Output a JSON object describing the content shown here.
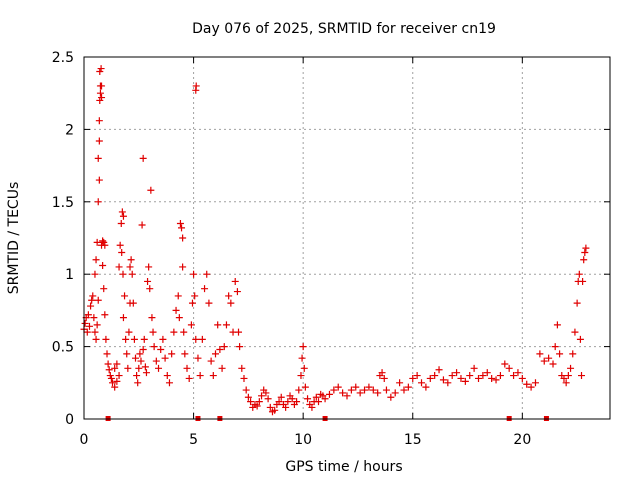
{
  "chart_data": {
    "type": "scatter",
    "title": "Day 076 of 2025, SRMTID for receiver cn19",
    "xlabel": "GPS time / hours",
    "ylabel": "SRMTID / TECUs",
    "xlim": [
      0,
      24
    ],
    "ylim": [
      0,
      2.5
    ],
    "x_ticks": [
      0,
      5,
      10,
      15,
      20
    ],
    "x_tick_labels": [
      "0",
      "5",
      "10",
      "15",
      "20"
    ],
    "y_ticks": [
      0,
      0.5,
      1,
      1.5,
      2,
      2.5
    ],
    "y_tick_labels": [
      "0",
      "0.5",
      "1",
      "1.5",
      "2",
      "2.5"
    ],
    "grid": true,
    "marker": "+",
    "series": [
      {
        "name": "SRMTID",
        "color": "#e00000",
        "points": [
          [
            0.0,
            0.62
          ],
          [
            0.05,
            0.66
          ],
          [
            0.1,
            0.7
          ],
          [
            0.15,
            0.6
          ],
          [
            0.2,
            0.72
          ],
          [
            0.25,
            0.64
          ],
          [
            0.3,
            0.78
          ],
          [
            0.35,
            0.82
          ],
          [
            0.4,
            0.85
          ],
          [
            0.45,
            0.7
          ],
          [
            0.5,
            0.6
          ],
          [
            0.55,
            0.55
          ],
          [
            0.6,
            0.65
          ],
          [
            0.65,
            0.82
          ],
          [
            0.5,
            1.0
          ],
          [
            0.55,
            1.1
          ],
          [
            0.6,
            1.22
          ],
          [
            0.65,
            1.5
          ],
          [
            0.7,
            1.65
          ],
          [
            0.65,
            1.8
          ],
          [
            0.7,
            1.92
          ],
          [
            0.7,
            2.06
          ],
          [
            0.72,
            2.2
          ],
          [
            0.75,
            2.25
          ],
          [
            0.75,
            2.3
          ],
          [
            0.72,
            2.4
          ],
          [
            0.78,
            2.42
          ],
          [
            0.8,
            2.22
          ],
          [
            0.8,
            2.3
          ],
          [
            0.8,
            1.2
          ],
          [
            0.85,
            1.23
          ],
          [
            0.9,
            1.22
          ],
          [
            0.95,
            1.2
          ],
          [
            0.85,
            1.06
          ],
          [
            0.9,
            0.9
          ],
          [
            0.95,
            0.72
          ],
          [
            1.0,
            0.55
          ],
          [
            1.05,
            0.45
          ],
          [
            1.1,
            0.38
          ],
          [
            1.15,
            0.34
          ],
          [
            1.2,
            0.3
          ],
          [
            1.25,
            0.28
          ],
          [
            1.3,
            0.25
          ],
          [
            1.4,
            0.22
          ],
          [
            1.5,
            0.26
          ],
          [
            1.6,
            0.3
          ],
          [
            1.4,
            0.35
          ],
          [
            1.5,
            0.38
          ],
          [
            1.6,
            1.05
          ],
          [
            1.65,
            1.2
          ],
          [
            1.7,
            1.35
          ],
          [
            1.75,
            1.43
          ],
          [
            1.8,
            1.4
          ],
          [
            1.72,
            1.15
          ],
          [
            1.78,
            1.0
          ],
          [
            1.85,
            0.85
          ],
          [
            1.8,
            0.7
          ],
          [
            1.9,
            0.55
          ],
          [
            1.95,
            0.45
          ],
          [
            2.0,
            0.35
          ],
          [
            2.05,
            0.6
          ],
          [
            2.1,
            0.8
          ],
          [
            2.1,
            1.05
          ],
          [
            2.15,
            1.1
          ],
          [
            2.2,
            1.0
          ],
          [
            2.25,
            0.8
          ],
          [
            2.3,
            0.55
          ],
          [
            2.35,
            0.42
          ],
          [
            2.4,
            0.3
          ],
          [
            2.45,
            0.25
          ],
          [
            2.5,
            0.35
          ],
          [
            2.55,
            0.45
          ],
          [
            2.6,
            0.4
          ],
          [
            2.7,
            0.48
          ],
          [
            2.75,
            0.55
          ],
          [
            2.65,
            1.34
          ],
          [
            2.7,
            1.8
          ],
          [
            2.8,
            0.36
          ],
          [
            2.85,
            0.32
          ],
          [
            2.9,
            0.95
          ],
          [
            2.95,
            1.05
          ],
          [
            3.0,
            0.9
          ],
          [
            3.05,
            1.58
          ],
          [
            3.1,
            0.7
          ],
          [
            3.15,
            0.6
          ],
          [
            3.2,
            0.5
          ],
          [
            3.3,
            0.4
          ],
          [
            3.4,
            0.35
          ],
          [
            3.5,
            0.48
          ],
          [
            3.6,
            0.55
          ],
          [
            3.7,
            0.42
          ],
          [
            3.8,
            0.3
          ],
          [
            3.9,
            0.25
          ],
          [
            4.0,
            0.45
          ],
          [
            4.1,
            0.6
          ],
          [
            4.2,
            0.75
          ],
          [
            4.3,
            0.85
          ],
          [
            4.35,
            0.7
          ],
          [
            4.4,
            1.35
          ],
          [
            4.45,
            1.32
          ],
          [
            4.5,
            1.05
          ],
          [
            4.5,
            1.25
          ],
          [
            4.55,
            0.6
          ],
          [
            4.6,
            0.45
          ],
          [
            4.7,
            0.35
          ],
          [
            4.8,
            0.28
          ],
          [
            4.9,
            0.65
          ],
          [
            4.95,
            0.8
          ],
          [
            5.0,
            1.0
          ],
          [
            5.05,
            0.85
          ],
          [
            5.1,
            0.55
          ],
          [
            5.1,
            2.27
          ],
          [
            5.12,
            2.3
          ],
          [
            5.2,
            0.42
          ],
          [
            5.3,
            0.3
          ],
          [
            5.4,
            0.55
          ],
          [
            5.5,
            0.9
          ],
          [
            5.6,
            1.0
          ],
          [
            5.7,
            0.8
          ],
          [
            5.8,
            0.4
          ],
          [
            5.9,
            0.3
          ],
          [
            6.0,
            0.45
          ],
          [
            6.1,
            0.65
          ],
          [
            6.2,
            0.48
          ],
          [
            6.3,
            0.35
          ],
          [
            6.4,
            0.5
          ],
          [
            6.5,
            0.65
          ],
          [
            6.6,
            0.85
          ],
          [
            6.7,
            0.8
          ],
          [
            6.8,
            0.6
          ],
          [
            6.9,
            0.95
          ],
          [
            7.0,
            0.88
          ],
          [
            7.05,
            0.6
          ],
          [
            7.1,
            0.5
          ],
          [
            7.2,
            0.35
          ],
          [
            7.3,
            0.28
          ],
          [
            7.4,
            0.2
          ],
          [
            7.5,
            0.15
          ],
          [
            7.6,
            0.12
          ],
          [
            7.7,
            0.08
          ],
          [
            7.8,
            0.1
          ],
          [
            7.9,
            0.09
          ],
          [
            8.0,
            0.12
          ],
          [
            8.1,
            0.16
          ],
          [
            8.2,
            0.2
          ],
          [
            8.3,
            0.18
          ],
          [
            8.4,
            0.14
          ],
          [
            8.5,
            0.08
          ],
          [
            8.6,
            0.05
          ],
          [
            8.7,
            0.06
          ],
          [
            8.8,
            0.1
          ],
          [
            8.9,
            0.12
          ],
          [
            9.0,
            0.15
          ],
          [
            9.1,
            0.1
          ],
          [
            9.2,
            0.08
          ],
          [
            9.3,
            0.12
          ],
          [
            9.4,
            0.16
          ],
          [
            9.5,
            0.14
          ],
          [
            9.6,
            0.1
          ],
          [
            9.7,
            0.12
          ],
          [
            9.8,
            0.2
          ],
          [
            9.9,
            0.3
          ],
          [
            9.95,
            0.42
          ],
          [
            10.0,
            0.5
          ],
          [
            10.05,
            0.35
          ],
          [
            10.1,
            0.22
          ],
          [
            10.2,
            0.14
          ],
          [
            10.3,
            0.1
          ],
          [
            10.4,
            0.08
          ],
          [
            10.5,
            0.12
          ],
          [
            10.6,
            0.15
          ],
          [
            10.7,
            0.12
          ],
          [
            10.8,
            0.17
          ],
          [
            10.9,
            0.16
          ],
          [
            11.0,
            0.14
          ],
          [
            11.2,
            0.17
          ],
          [
            11.4,
            0.2
          ],
          [
            11.6,
            0.22
          ],
          [
            11.8,
            0.18
          ],
          [
            12.0,
            0.16
          ],
          [
            12.2,
            0.2
          ],
          [
            12.4,
            0.22
          ],
          [
            12.6,
            0.18
          ],
          [
            12.8,
            0.2
          ],
          [
            13.0,
            0.22
          ],
          [
            13.2,
            0.2
          ],
          [
            13.4,
            0.18
          ],
          [
            13.5,
            0.3
          ],
          [
            13.6,
            0.32
          ],
          [
            13.7,
            0.28
          ],
          [
            13.8,
            0.2
          ],
          [
            14.0,
            0.15
          ],
          [
            14.2,
            0.18
          ],
          [
            14.4,
            0.25
          ],
          [
            14.6,
            0.2
          ],
          [
            14.8,
            0.22
          ],
          [
            15.0,
            0.28
          ],
          [
            15.2,
            0.3
          ],
          [
            15.4,
            0.25
          ],
          [
            15.6,
            0.22
          ],
          [
            15.8,
            0.28
          ],
          [
            16.0,
            0.3
          ],
          [
            16.2,
            0.34
          ],
          [
            16.4,
            0.27
          ],
          [
            16.6,
            0.25
          ],
          [
            16.8,
            0.3
          ],
          [
            17.0,
            0.32
          ],
          [
            17.2,
            0.28
          ],
          [
            17.4,
            0.26
          ],
          [
            17.6,
            0.3
          ],
          [
            17.8,
            0.35
          ],
          [
            18.0,
            0.28
          ],
          [
            18.2,
            0.3
          ],
          [
            18.4,
            0.32
          ],
          [
            18.6,
            0.28
          ],
          [
            18.8,
            0.27
          ],
          [
            19.0,
            0.3
          ],
          [
            19.2,
            0.38
          ],
          [
            19.4,
            0.35
          ],
          [
            19.6,
            0.3
          ],
          [
            19.8,
            0.32
          ],
          [
            20.0,
            0.28
          ],
          [
            20.2,
            0.24
          ],
          [
            20.4,
            0.22
          ],
          [
            20.6,
            0.25
          ],
          [
            20.8,
            0.45
          ],
          [
            21.0,
            0.4
          ],
          [
            21.2,
            0.42
          ],
          [
            21.4,
            0.38
          ],
          [
            21.5,
            0.5
          ],
          [
            21.6,
            0.65
          ],
          [
            21.7,
            0.45
          ],
          [
            21.8,
            0.3
          ],
          [
            21.9,
            0.28
          ],
          [
            22.0,
            0.25
          ],
          [
            22.1,
            0.3
          ],
          [
            22.2,
            0.35
          ],
          [
            22.3,
            0.45
          ],
          [
            22.4,
            0.6
          ],
          [
            22.5,
            0.8
          ],
          [
            22.55,
            0.95
          ],
          [
            22.6,
            1.0
          ],
          [
            22.65,
            0.55
          ],
          [
            22.7,
            0.3
          ],
          [
            22.75,
            0.95
          ],
          [
            22.8,
            1.1
          ],
          [
            22.85,
            1.15
          ],
          [
            22.9,
            1.18
          ]
        ],
        "edge_markers_x": [
          1.1,
          5.2,
          6.2,
          11.0,
          19.4,
          21.1
        ]
      }
    ]
  }
}
